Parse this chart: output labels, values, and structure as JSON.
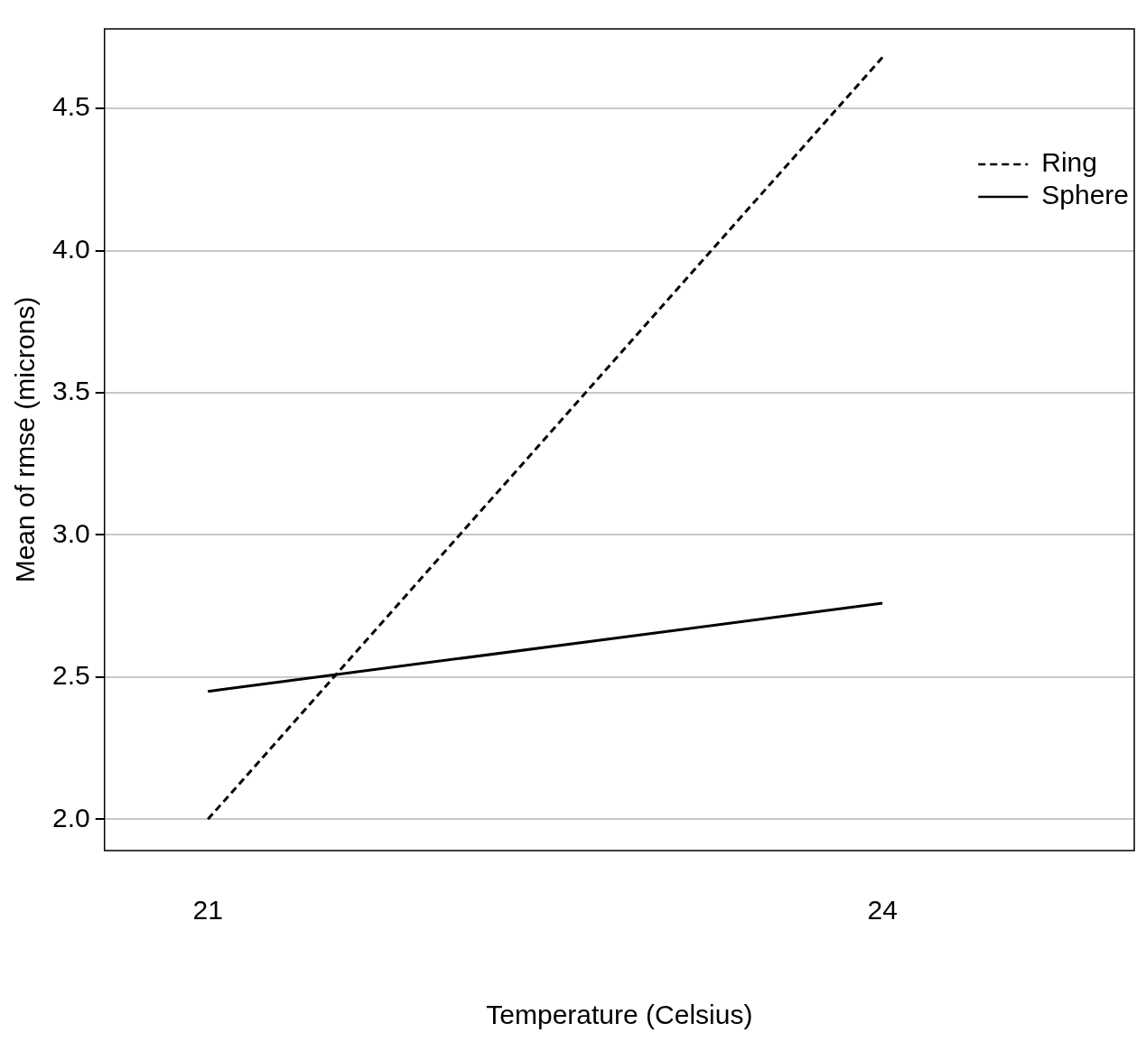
{
  "chart_data": {
    "type": "line",
    "xlabel": "Temperature (Celsius)",
    "ylabel": "Mean of rmse (microns)",
    "x": [
      21,
      24
    ],
    "xlim": [
      20.54,
      25.12
    ],
    "xticks": [
      21,
      24
    ],
    "series": [
      {
        "name": "Ring",
        "color": "#000000",
        "values": [
          2.0,
          4.68
        ],
        "line_style": "dashed"
      },
      {
        "name": "Sphere",
        "color": "#000000",
        "values": [
          2.45,
          2.76
        ],
        "line_style": "solid"
      }
    ],
    "ylim": [
      1.89,
      4.78
    ],
    "yticks": [
      {
        "value": 2,
        "label": "2.0"
      },
      {
        "value": 2.5,
        "label": "2.5"
      },
      {
        "value": 3,
        "label": "3.0"
      },
      {
        "value": 3.5,
        "label": "3.5"
      },
      {
        "value": 4,
        "label": "4.0"
      },
      {
        "value": 4.5,
        "label": "4.5"
      }
    ],
    "grid": "y",
    "legend": "top right",
    "marker": "none"
  }
}
